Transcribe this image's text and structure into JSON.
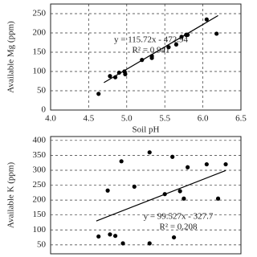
{
  "chart_data": [
    {
      "type": "scatter",
      "x_label": "Soil pH",
      "y_label": "Available  Mg (ppm)",
      "equation": "y = 115.72x - 472.94",
      "r_squared": "R² = 0.941",
      "x": [
        4.63,
        4.78,
        4.85,
        4.9,
        4.97,
        4.98,
        5.2,
        5.33,
        5.33,
        5.55,
        5.65,
        5.72,
        5.78,
        5.8,
        6.05,
        6.18
      ],
      "series": [
        {
          "color": "#000000",
          "values": [
            42,
            88,
            85,
            97,
            100,
            93,
            130,
            140,
            135,
            163,
            170,
            190,
            195,
            195,
            235,
            198
          ]
        }
      ],
      "trend": {
        "x": [
          4.7,
          6.2
        ],
        "values": [
          71,
          245
        ],
        "color": "#000000"
      },
      "xlim": [
        4.0,
        6.5
      ],
      "xticks": [
        {
          "value": 4.0,
          "label": "4.0"
        },
        4.5,
        {
          "value": 5.0,
          "label": "5.0"
        },
        5.5,
        {
          "value": 6.0,
          "label": "6.0"
        },
        6.5
      ],
      "ylim": [
        0,
        275
      ],
      "yticks": [
        0,
        50,
        100,
        150,
        200,
        250
      ],
      "grid": true
    },
    {
      "type": "scatter",
      "y_label": "Available  K (ppm)",
      "equation": "y = 99.527x - 327.7",
      "r_squared": "R² = 0.208",
      "x": [
        4.63,
        4.75,
        4.78,
        4.85,
        4.93,
        4.95,
        5.1,
        5.3,
        5.3,
        5.5,
        5.6,
        5.62,
        5.7,
        5.75,
        5.8,
        6.05,
        6.2,
        6.3
      ],
      "series": [
        {
          "color": "#000000",
          "values": [
            78,
            232,
            85,
            80,
            330,
            55,
            245,
            360,
            55,
            220,
            345,
            75,
            230,
            205,
            310,
            320,
            205,
            320
          ]
        }
      ],
      "trend": {
        "x": [
          4.6,
          6.3
        ],
        "values": [
          130,
          299
        ],
        "color": "#000000"
      },
      "xlim": [
        4.0,
        6.5
      ],
      "ylim": [
        20,
        413
      ],
      "yticks": [
        50,
        100,
        150,
        200,
        250,
        300,
        350,
        400
      ],
      "grid": true
    }
  ]
}
